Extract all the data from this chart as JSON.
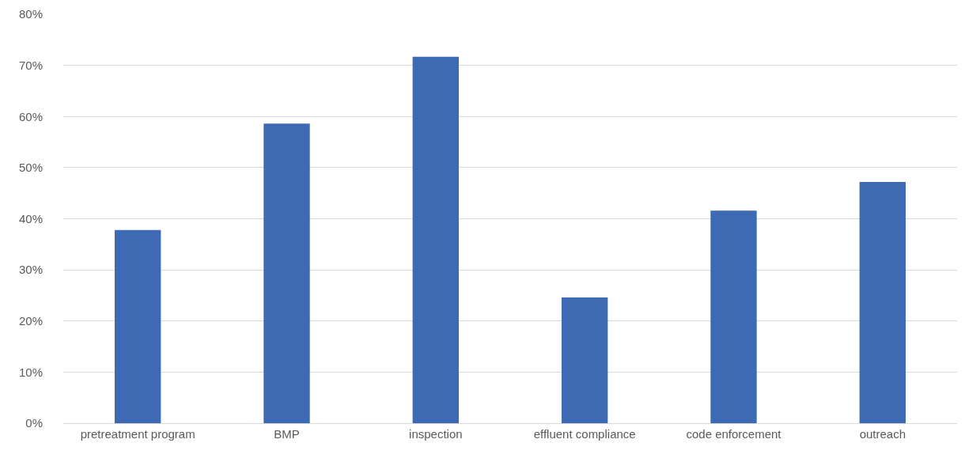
{
  "chart_data": {
    "type": "bar",
    "categories": [
      "pretreatment program",
      "BMP",
      "inspection",
      "effluent compliance",
      "code enforcement",
      "outreach"
    ],
    "values": [
      37.8,
      58.6,
      71.7,
      24.6,
      41.6,
      47.2
    ],
    "color": "#3d6ab3",
    "ylim": [
      0,
      80
    ],
    "yticks": [
      {
        "value": 0,
        "label": "0%"
      },
      {
        "value": 10,
        "label": "10%"
      },
      {
        "value": 20,
        "label": "20%"
      },
      {
        "value": 30,
        "label": "30%"
      },
      {
        "value": 40,
        "label": "40%"
      },
      {
        "value": 50,
        "label": "50%"
      },
      {
        "value": 60,
        "label": "60%"
      },
      {
        "value": 70,
        "label": "70%"
      },
      {
        "value": 80,
        "label": "80%"
      }
    ],
    "grid": "y"
  }
}
